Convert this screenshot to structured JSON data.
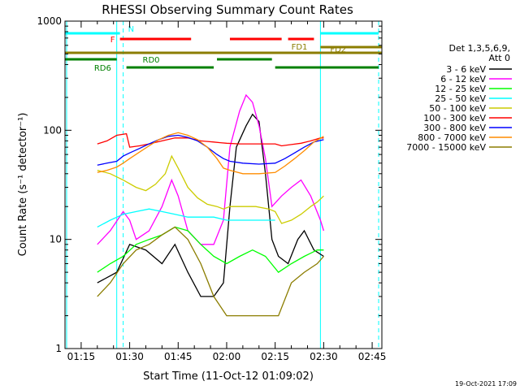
{
  "chart_data": {
    "type": "line",
    "title": "RHESSI Observing Summary Count Rates",
    "xlabel": "Start Time (11-Oct-12 01:09:02)",
    "ylabel": "Count Rate (s⁻¹ detector⁻¹)",
    "yscale": "log",
    "ylim": [
      1,
      1000
    ],
    "xlim_minutes": [
      70,
      168
    ],
    "x_ticks": [
      {
        "label": "01:15",
        "minute": 75
      },
      {
        "label": "01:30",
        "minute": 90
      },
      {
        "label": "01:45",
        "minute": 105
      },
      {
        "label": "02:00",
        "minute": 120
      },
      {
        "label": "02:15",
        "minute": 135
      },
      {
        "label": "02:30",
        "minute": 150
      },
      {
        "label": "02:45",
        "minute": 165
      }
    ],
    "y_ticks": [
      {
        "label": "1",
        "value": 1
      },
      {
        "label": "10",
        "value": 10
      },
      {
        "label": "100",
        "value": 100
      },
      {
        "label": "1000",
        "value": 1000
      }
    ],
    "legend": {
      "placement": "right",
      "header": [
        "Det 1,3,5,6,9,",
        "Att 0"
      ],
      "entries": [
        {
          "label": "3 - 6 keV",
          "color": "#000000"
        },
        {
          "label": "6 - 12 keV",
          "color": "#ff00ff"
        },
        {
          "label": "12 - 25 keV",
          "color": "#00ff00"
        },
        {
          "label": "25 - 50 keV",
          "color": "#00ffff"
        },
        {
          "label": "50 - 100 keV",
          "color": "#cccc00"
        },
        {
          "label": "100 - 300 keV",
          "color": "#ff0000"
        },
        {
          "label": "300 - 800 keV",
          "color": "#0000ff"
        },
        {
          "label": "800 - 7000 keV",
          "color": "#ff8c00"
        },
        {
          "label": "7000 - 15000 keV",
          "color": "#8b7d00"
        }
      ]
    },
    "series": [
      {
        "name": "3 - 6 keV",
        "color": "#000000",
        "points": [
          [
            80,
            4
          ],
          [
            86,
            5
          ],
          [
            90,
            9
          ],
          [
            95,
            8
          ],
          [
            100,
            6
          ],
          [
            104,
            9
          ],
          [
            108,
            5
          ],
          [
            112,
            3
          ],
          [
            116,
            3
          ],
          [
            119,
            4
          ],
          [
            121,
            20
          ],
          [
            123,
            70
          ],
          [
            126,
            110
          ],
          [
            128,
            140
          ],
          [
            130,
            120
          ],
          [
            132,
            40
          ],
          [
            134,
            10
          ],
          [
            136,
            7
          ],
          [
            139,
            6
          ],
          [
            142,
            10
          ],
          [
            144,
            12
          ],
          [
            147,
            8
          ],
          [
            150,
            7
          ]
        ]
      },
      {
        "name": "6 - 12 keV",
        "color": "#ff00ff",
        "points": [
          [
            80,
            9
          ],
          [
            84,
            12
          ],
          [
            88,
            18
          ],
          [
            90,
            15
          ],
          [
            92,
            10
          ],
          [
            96,
            12
          ],
          [
            100,
            20
          ],
          [
            103,
            35
          ],
          [
            105,
            25
          ],
          [
            108,
            12
          ],
          [
            112,
            9
          ],
          [
            116,
            9
          ],
          [
            119,
            15
          ],
          [
            121,
            70
          ],
          [
            124,
            150
          ],
          [
            126,
            210
          ],
          [
            128,
            180
          ],
          [
            130,
            110
          ],
          [
            132,
            55
          ],
          [
            134,
            20
          ],
          [
            137,
            25
          ],
          [
            140,
            30
          ],
          [
            143,
            35
          ],
          [
            146,
            25
          ],
          [
            149,
            15
          ],
          [
            150,
            12
          ]
        ]
      },
      {
        "name": "12 - 25 keV",
        "color": "#00ff00",
        "points": [
          [
            80,
            5
          ],
          [
            84,
            6
          ],
          [
            88,
            7
          ],
          [
            92,
            9
          ],
          [
            96,
            10
          ],
          [
            100,
            11
          ],
          [
            104,
            13
          ],
          [
            108,
            12
          ],
          [
            112,
            9
          ],
          [
            116,
            7
          ],
          [
            120,
            6
          ],
          [
            124,
            7
          ],
          [
            128,
            8
          ],
          [
            132,
            7
          ],
          [
            136,
            5
          ],
          [
            140,
            6
          ],
          [
            144,
            7
          ],
          [
            148,
            8
          ],
          [
            150,
            8
          ]
        ]
      },
      {
        "name": "25 - 50 keV",
        "color": "#00ffff",
        "points": [
          [
            80,
            13
          ],
          [
            84,
            15
          ],
          [
            88,
            17
          ],
          [
            92,
            18
          ],
          [
            96,
            19
          ],
          [
            100,
            18
          ],
          [
            104,
            17
          ],
          [
            108,
            16
          ],
          [
            112,
            16
          ],
          [
            116,
            16
          ],
          [
            120,
            15
          ],
          [
            124,
            15
          ],
          [
            128,
            15
          ],
          [
            132,
            15
          ],
          [
            135,
            15
          ]
        ]
      },
      {
        "name": "50 - 100 keV",
        "color": "#cccc00",
        "points": [
          [
            80,
            43
          ],
          [
            84,
            40
          ],
          [
            88,
            35
          ],
          [
            92,
            30
          ],
          [
            95,
            28
          ],
          [
            98,
            32
          ],
          [
            101,
            40
          ],
          [
            103,
            58
          ],
          [
            105,
            45
          ],
          [
            108,
            30
          ],
          [
            111,
            24
          ],
          [
            114,
            21
          ],
          [
            117,
            20
          ],
          [
            119,
            19
          ],
          [
            121,
            20
          ],
          [
            125,
            20
          ],
          [
            129,
            20
          ],
          [
            133,
            19
          ],
          [
            135,
            18
          ],
          [
            137,
            14
          ],
          [
            140,
            15
          ],
          [
            143,
            17
          ],
          [
            146,
            20
          ],
          [
            148,
            22
          ],
          [
            150,
            25
          ]
        ]
      },
      {
        "name": "100 - 300 keV",
        "color": "#ff0000",
        "points": [
          [
            80,
            75
          ],
          [
            83,
            80
          ],
          [
            86,
            90
          ],
          [
            89,
            93
          ],
          [
            90,
            70
          ],
          [
            93,
            72
          ],
          [
            96,
            75
          ],
          [
            100,
            80
          ],
          [
            104,
            85
          ],
          [
            108,
            85
          ],
          [
            112,
            80
          ],
          [
            116,
            78
          ],
          [
            118,
            77
          ],
          [
            120,
            76
          ],
          [
            124,
            75
          ],
          [
            128,
            75
          ],
          [
            132,
            75
          ],
          [
            135,
            75
          ],
          [
            137,
            72
          ],
          [
            140,
            74
          ],
          [
            143,
            76
          ],
          [
            146,
            80
          ],
          [
            149,
            85
          ],
          [
            150,
            85
          ]
        ]
      },
      {
        "name": "300 - 800 keV",
        "color": "#0000ff",
        "points": [
          [
            80,
            48
          ],
          [
            83,
            50
          ],
          [
            86,
            52
          ],
          [
            88,
            58
          ],
          [
            90,
            62
          ],
          [
            93,
            68
          ],
          [
            96,
            75
          ],
          [
            99,
            82
          ],
          [
            102,
            88
          ],
          [
            105,
            90
          ],
          [
            108,
            86
          ],
          [
            111,
            80
          ],
          [
            114,
            70
          ],
          [
            117,
            60
          ],
          [
            119,
            55
          ],
          [
            121,
            52
          ],
          [
            125,
            50
          ],
          [
            130,
            49
          ],
          [
            135,
            50
          ],
          [
            138,
            55
          ],
          [
            141,
            62
          ],
          [
            144,
            70
          ],
          [
            147,
            78
          ],
          [
            150,
            82
          ]
        ]
      },
      {
        "name": "800 - 7000 keV",
        "color": "#ff8c00",
        "points": [
          [
            80,
            41
          ],
          [
            83,
            43
          ],
          [
            86,
            46
          ],
          [
            88,
            50
          ],
          [
            90,
            55
          ],
          [
            93,
            63
          ],
          [
            96,
            72
          ],
          [
            99,
            82
          ],
          [
            102,
            90
          ],
          [
            105,
            95
          ],
          [
            108,
            90
          ],
          [
            111,
            82
          ],
          [
            114,
            70
          ],
          [
            117,
            55
          ],
          [
            119,
            45
          ],
          [
            121,
            43
          ],
          [
            125,
            40
          ],
          [
            130,
            40
          ],
          [
            135,
            41
          ],
          [
            138,
            47
          ],
          [
            141,
            55
          ],
          [
            144,
            65
          ],
          [
            147,
            78
          ],
          [
            150,
            88
          ]
        ]
      },
      {
        "name": "7000 - 15000 keV",
        "color": "#8b7d00",
        "points": [
          [
            80,
            3
          ],
          [
            84,
            4
          ],
          [
            88,
            6
          ],
          [
            92,
            8
          ],
          [
            96,
            9
          ],
          [
            100,
            11
          ],
          [
            104,
            13
          ],
          [
            108,
            10
          ],
          [
            112,
            6
          ],
          [
            116,
            3
          ],
          [
            120,
            2
          ],
          [
            124,
            2
          ],
          [
            128,
            2
          ],
          [
            132,
            2
          ],
          [
            136,
            2
          ],
          [
            140,
            4
          ],
          [
            144,
            5
          ],
          [
            148,
            6
          ],
          [
            150,
            7
          ]
        ]
      }
    ],
    "status_bars": [
      {
        "label": "N",
        "color": "#00ffff",
        "segments": [
          [
            70,
            87
          ],
          [
            149,
            167
          ]
        ]
      },
      {
        "label": "F",
        "color": "#ff0000",
        "segments": [
          [
            87,
            109
          ],
          [
            121,
            137
          ],
          [
            139,
            147
          ]
        ]
      },
      {
        "label": "FD1",
        "color": "#8b7d00",
        "segments": [
          [
            70,
            168
          ]
        ]
      },
      {
        "label": "FD2",
        "color": "#8b7d00",
        "segments": [
          [
            149,
            168
          ]
        ]
      },
      {
        "label": "RD0",
        "color": "#008000",
        "segments": [
          [
            70,
            86
          ],
          [
            117,
            134
          ]
        ]
      },
      {
        "label": "RD6",
        "color": "#008000",
        "segments": [
          [
            89,
            116
          ],
          [
            135,
            167
          ]
        ]
      }
    ],
    "vertical_markers": [
      {
        "minute": 70.5,
        "color": "#00ffff",
        "style": "solid"
      },
      {
        "minute": 86.0,
        "color": "#00ffff",
        "style": "solid"
      },
      {
        "minute": 88.0,
        "color": "#00ffff",
        "style": "dashed"
      },
      {
        "minute": 149.0,
        "color": "#00ffff",
        "style": "solid"
      },
      {
        "minute": 167.0,
        "color": "#00ffff",
        "style": "dashed"
      }
    ]
  },
  "footer": {
    "timestamp": "19-Oct-2021 17:09"
  }
}
